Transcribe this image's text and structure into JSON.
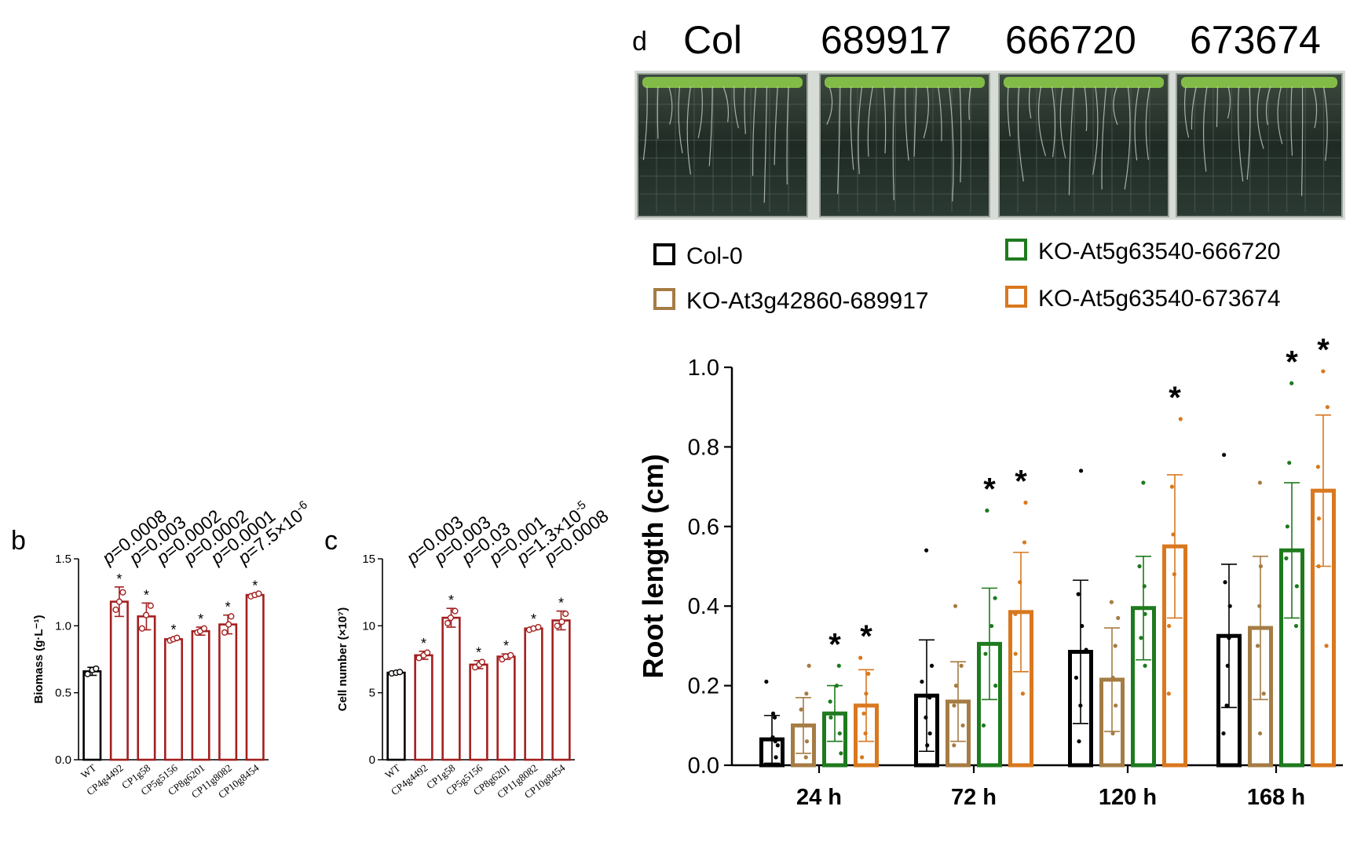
{
  "panel_labels": {
    "b": "b",
    "c": "c",
    "d": "d"
  },
  "photo": {
    "lines": [
      "Col",
      "689917",
      "666720",
      "673674"
    ]
  },
  "chart_data": [
    {
      "type": "bar",
      "panel": "b",
      "ylabel": "Biomass (g·L⁻¹)",
      "ylim": [
        0,
        1.5
      ],
      "yticks": [
        "0.0",
        "0.5",
        "1.0",
        "1.5"
      ],
      "categories": [
        "WT",
        "CP4g4492",
        "CP1g58",
        "CP5g5156",
        "CP8g6201",
        "CP11g8082",
        "CP10g8454"
      ],
      "values": [
        0.66,
        1.18,
        1.07,
        0.9,
        0.96,
        1.01,
        1.23
      ],
      "errors": [
        0.03,
        0.11,
        0.1,
        0.01,
        0.03,
        0.07,
        0.01
      ],
      "points": [
        [
          0.64,
          0.67,
          0.68
        ],
        [
          1.12,
          1.18,
          1.25
        ],
        [
          0.98,
          1.08,
          1.15
        ],
        [
          0.89,
          0.9,
          0.91
        ],
        [
          0.95,
          0.96,
          0.98
        ],
        [
          0.95,
          1.01,
          1.07
        ],
        [
          1.22,
          1.23,
          1.24
        ]
      ],
      "significant": [
        false,
        true,
        true,
        true,
        true,
        true,
        true
      ],
      "star": "*",
      "colors": [
        "#000000",
        "#a31f1f",
        "#a31f1f",
        "#a31f1f",
        "#a31f1f",
        "#a31f1f",
        "#a31f1f"
      ],
      "pvalues": [
        {
          "text": "p=0.0008"
        },
        {
          "text": "p=0.003"
        },
        {
          "text": "p=0.0002"
        },
        {
          "text": "p=0.0002"
        },
        {
          "text": "p=0.0001"
        },
        {
          "text": "p=7.5×10",
          "sup": "-6"
        }
      ]
    },
    {
      "type": "bar",
      "panel": "c",
      "ylabel": "Cell number (×10⁷)",
      "ylim": [
        0,
        15
      ],
      "yticks": [
        "0",
        "5",
        "10",
        "15"
      ],
      "categories": [
        "WT",
        "CP4g4492",
        "CP1g58",
        "CP5g5156",
        "CP8g6201",
        "CP11g8082",
        "CP10g8454"
      ],
      "values": [
        6.5,
        7.8,
        10.6,
        7.1,
        7.7,
        9.8,
        10.4
      ],
      "errors": [
        0.1,
        0.3,
        0.7,
        0.3,
        0.2,
        0.1,
        0.7
      ],
      "points": [
        [
          6.45,
          6.5,
          6.55
        ],
        [
          7.6,
          7.8,
          8.0
        ],
        [
          10.2,
          10.6,
          11.1
        ],
        [
          6.9,
          7.1,
          7.3
        ],
        [
          7.5,
          7.7,
          7.8
        ],
        [
          9.7,
          9.8,
          9.9
        ],
        [
          10.0,
          10.3,
          10.9
        ]
      ],
      "significant": [
        false,
        true,
        true,
        true,
        true,
        true,
        true
      ],
      "star": "*",
      "colors": [
        "#000000",
        "#a31f1f",
        "#a31f1f",
        "#a31f1f",
        "#a31f1f",
        "#a31f1f",
        "#a31f1f"
      ],
      "pvalues": [
        {
          "text": "p=0.003"
        },
        {
          "text": "p=0.003"
        },
        {
          "text": "p=0.03"
        },
        {
          "text": "p=0.001"
        },
        {
          "text": "p=1.3×10",
          "sup": "-5"
        },
        {
          "text": "p=0.0008"
        }
      ]
    },
    {
      "type": "bar",
      "panel": "d",
      "ylabel": "Root length (cm)",
      "ylim": [
        0,
        1.0
      ],
      "yticks": [
        "0.0",
        "0.2",
        "0.4",
        "0.6",
        "0.8",
        "1.0"
      ],
      "categories": [
        "24 h",
        "72 h",
        "120 h",
        "168 h"
      ],
      "legend": [
        {
          "label": "Col-0",
          "color": "#000000"
        },
        {
          "label": "KO-At3g42860-689917",
          "color": "#a57c44"
        },
        {
          "label": "KO-At5g63540-666720",
          "color": "#1e7a1e"
        },
        {
          "label": "KO-At5g63540-673674",
          "color": "#d9781e"
        }
      ],
      "series": [
        {
          "name": "Col-0",
          "color": "#000000",
          "values": [
            0.065,
            0.175,
            0.285,
            0.325
          ],
          "errors": [
            0.06,
            0.14,
            0.18,
            0.18
          ],
          "significant": [
            false,
            false,
            false,
            false
          ],
          "points": [
            [
              0.0,
              0.02,
              0.05,
              0.06,
              0.07,
              0.12,
              0.13,
              0.21
            ],
            [
              0.05,
              0.08,
              0.12,
              0.17,
              0.21,
              0.25,
              0.54
            ],
            [
              0.06,
              0.15,
              0.22,
              0.29,
              0.35,
              0.43,
              0.74
            ],
            [
              0.08,
              0.15,
              0.25,
              0.32,
              0.4,
              0.46,
              0.78
            ]
          ]
        },
        {
          "name": "KO-At3g42860-689917",
          "color": "#a57c44",
          "values": [
            0.1,
            0.16,
            0.215,
            0.345
          ],
          "errors": [
            0.07,
            0.1,
            0.13,
            0.18
          ],
          "significant": [
            false,
            false,
            false,
            false
          ],
          "points": [
            [
              0.02,
              0.06,
              0.1,
              0.14,
              0.18,
              0.25
            ],
            [
              0.05,
              0.1,
              0.15,
              0.2,
              0.25,
              0.4
            ],
            [
              0.08,
              0.15,
              0.22,
              0.3,
              0.37,
              0.41
            ],
            [
              0.08,
              0.18,
              0.3,
              0.4,
              0.5,
              0.71
            ]
          ]
        },
        {
          "name": "KO-At5g63540-666720",
          "color": "#1e7a1e",
          "values": [
            0.13,
            0.305,
            0.395,
            0.54
          ],
          "errors": [
            0.07,
            0.14,
            0.13,
            0.17
          ],
          "significant": [
            true,
            true,
            false,
            true
          ],
          "points": [
            [
              0.03,
              0.08,
              0.12,
              0.16,
              0.2,
              0.25
            ],
            [
              0.1,
              0.2,
              0.28,
              0.35,
              0.42,
              0.64
            ],
            [
              0.25,
              0.32,
              0.38,
              0.45,
              0.5,
              0.71
            ],
            [
              0.35,
              0.45,
              0.52,
              0.6,
              0.76,
              0.96
            ]
          ]
        },
        {
          "name": "KO-At5g63540-673674",
          "color": "#d9781e",
          "values": [
            0.15,
            0.385,
            0.55,
            0.69
          ],
          "errors": [
            0.09,
            0.15,
            0.18,
            0.19
          ],
          "significant": [
            true,
            true,
            true,
            true
          ],
          "points": [
            [
              0.02,
              0.08,
              0.13,
              0.18,
              0.23,
              0.27
            ],
            [
              0.18,
              0.28,
              0.38,
              0.46,
              0.56,
              0.66
            ],
            [
              0.18,
              0.35,
              0.48,
              0.58,
              0.7,
              0.87
            ],
            [
              0.3,
              0.5,
              0.62,
              0.75,
              0.9,
              0.99
            ]
          ]
        }
      ],
      "star": "*"
    }
  ]
}
